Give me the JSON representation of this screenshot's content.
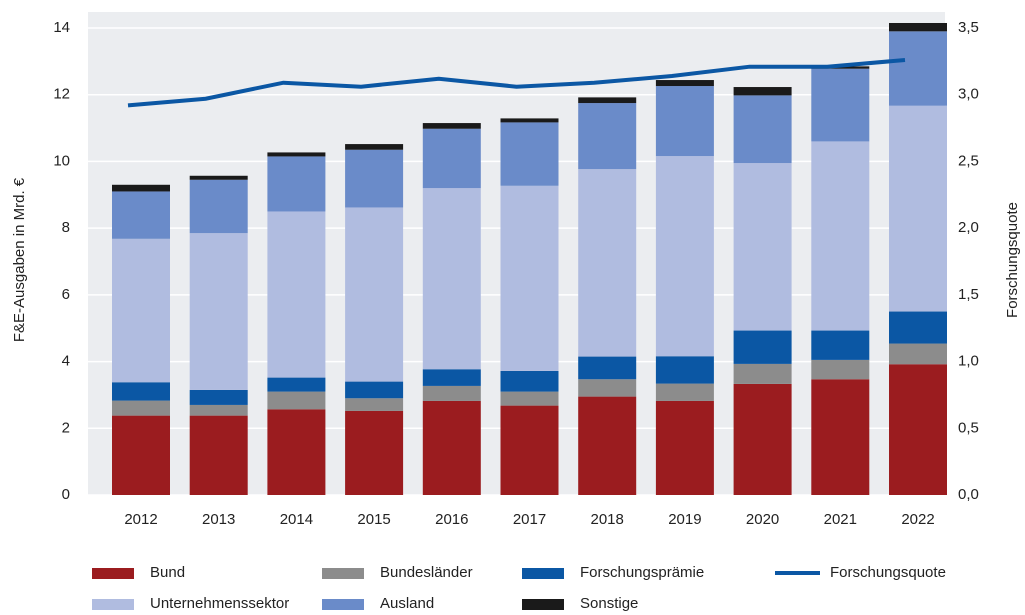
{
  "chart_data": {
    "type": "bar",
    "categories": [
      "2012",
      "2013",
      "2014",
      "2015",
      "2016",
      "2017",
      "2018",
      "2019",
      "2020",
      "2021",
      "2022"
    ],
    "y_label": "F&E-Ausgaben in Mrd. €",
    "y2_label": "Forschungsquote",
    "ylim": [
      0,
      14
    ],
    "yticks": [
      0,
      2,
      4,
      6,
      8,
      10,
      12,
      14
    ],
    "y2lim": [
      0,
      3.5
    ],
    "y2ticks": [
      {
        "value": 0,
        "label": "0,0"
      },
      {
        "value": 0.5,
        "label": "0,5"
      },
      {
        "value": 1,
        "label": "1,0"
      },
      {
        "value": 1.5,
        "label": "1,5"
      },
      {
        "value": 2,
        "label": "2,0"
      },
      {
        "value": 2.5,
        "label": "2,5"
      },
      {
        "value": 3,
        "label": "3,0"
      },
      {
        "value": 3.5,
        "label": "3,5"
      }
    ],
    "grid": true,
    "stacked": true,
    "legend": "bottom",
    "series": [
      {
        "name": "Bund",
        "color": "#9b1c1f",
        "values": [
          2.38,
          2.38,
          2.57,
          2.52,
          2.82,
          2.68,
          2.95,
          2.82,
          3.33,
          3.47,
          3.92
        ]
      },
      {
        "name": "Bundesländer",
        "color": "#8c8c8c",
        "values": [
          0.45,
          0.32,
          0.53,
          0.38,
          0.45,
          0.42,
          0.52,
          0.52,
          0.6,
          0.58,
          0.62
        ]
      },
      {
        "name": "Forschungsprämie",
        "color": "#0b57a4",
        "values": [
          0.55,
          0.45,
          0.42,
          0.5,
          0.5,
          0.62,
          0.68,
          0.82,
          1.0,
          0.88,
          0.96
        ]
      },
      {
        "name": "Unternehmenssektor",
        "color": "#b0bce0",
        "values": [
          4.3,
          4.7,
          4.98,
          5.22,
          5.43,
          5.55,
          5.62,
          6.0,
          5.02,
          5.67,
          6.17
        ]
      },
      {
        "name": "Ausland",
        "color": "#6a8bc9",
        "values": [
          1.42,
          1.6,
          1.65,
          1.73,
          1.78,
          1.9,
          1.98,
          2.1,
          2.03,
          2.18,
          2.23
        ]
      },
      {
        "name": "Sonstige",
        "color": "#1a1a1a",
        "values": [
          0.2,
          0.12,
          0.12,
          0.17,
          0.17,
          0.12,
          0.17,
          0.18,
          0.25,
          0.07,
          0.25
        ]
      },
      {
        "name": "Forschungsquote",
        "color": "#0b57a4",
        "type": "line",
        "axis": "y2",
        "values": [
          2.92,
          2.97,
          3.09,
          3.06,
          3.12,
          3.06,
          3.09,
          3.14,
          3.21,
          3.21,
          3.26
        ]
      }
    ]
  }
}
